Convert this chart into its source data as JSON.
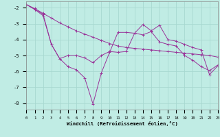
{
  "x": [
    0,
    1,
    2,
    3,
    4,
    5,
    6,
    7,
    8,
    9,
    10,
    11,
    12,
    13,
    14,
    15,
    16,
    17,
    18,
    19,
    20,
    21,
    22,
    23
  ],
  "line1": [
    -1.8,
    -2.1,
    -2.5,
    -4.3,
    -5.2,
    -5.7,
    -5.9,
    -6.4,
    -8.05,
    -6.1,
    -4.8,
    -3.55,
    -3.55,
    -3.6,
    -3.05,
    -3.45,
    -3.1,
    -4.0,
    -4.1,
    -4.3,
    -4.5,
    -4.65,
    -6.2,
    -5.65
  ],
  "line2": [
    -1.8,
    -2.05,
    -2.35,
    -2.65,
    -2.95,
    -3.2,
    -3.45,
    -3.65,
    -3.85,
    -4.05,
    -4.25,
    -4.4,
    -4.5,
    -4.55,
    -4.6,
    -4.65,
    -4.7,
    -4.75,
    -4.8,
    -4.85,
    -4.9,
    -4.95,
    -5.0,
    -5.1
  ],
  "line3": [
    -1.8,
    -2.1,
    -2.4,
    -4.3,
    -5.2,
    -5.0,
    -5.0,
    -5.15,
    -5.45,
    -5.0,
    -4.75,
    -4.8,
    -4.75,
    -3.6,
    -3.7,
    -3.5,
    -4.15,
    -4.3,
    -4.4,
    -5.0,
    -5.3,
    -5.7,
    -5.95,
    -5.6
  ],
  "bg_color": "#c0ece4",
  "grid_color": "#a8d8d0",
  "line_color": "#993399",
  "xlabel": "Windchill (Refroidissement éolien,°C)",
  "ylabel_ticks": [
    -2,
    -3,
    -4,
    -5,
    -6,
    -7,
    -8
  ],
  "xtick_labels": [
    "0",
    "1",
    "2",
    "3",
    "4",
    "5",
    "6",
    "7",
    "8",
    "9",
    "10",
    "11",
    "12",
    "13",
    "14",
    "15",
    "16",
    "17",
    "18",
    "19",
    "20",
    "21",
    "22",
    "23"
  ],
  "xlim": [
    0,
    23
  ],
  "ylim": [
    -8.4,
    -1.6
  ]
}
